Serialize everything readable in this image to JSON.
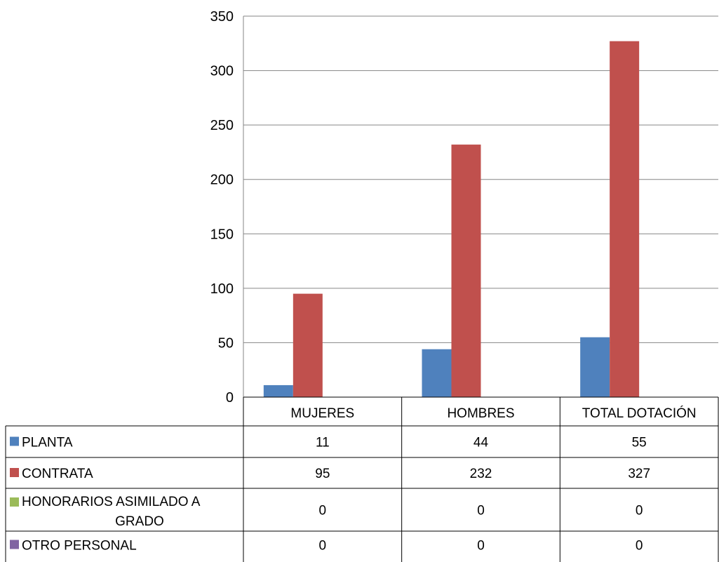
{
  "chart_data": {
    "type": "bar",
    "categories": [
      "MUJERES",
      "HOMBRES",
      "TOTAL DOTACIÓN"
    ],
    "series": [
      {
        "name": "PLANTA",
        "label_lines": [
          "PLANTA"
        ],
        "values": [
          11,
          44,
          55
        ],
        "color": "#4f81bd"
      },
      {
        "name": "CONTRATA",
        "label_lines": [
          "CONTRATA"
        ],
        "values": [
          95,
          232,
          327
        ],
        "color": "#c0504d"
      },
      {
        "name": "HONORARIOS ASIMILADO A GRADO",
        "label_lines": [
          "HONORARIOS ASIMILADO A",
          "GRADO"
        ],
        "values": [
          0,
          0,
          0
        ],
        "color": "#9bbb59"
      },
      {
        "name": "OTRO PERSONAL",
        "label_lines": [
          "OTRO PERSONAL"
        ],
        "values": [
          0,
          0,
          0
        ],
        "color": "#8064a2"
      }
    ],
    "ylim": [
      0,
      350
    ],
    "yticks": [
      0,
      50,
      100,
      150,
      200,
      250,
      300,
      350
    ],
    "grid": true,
    "legend": "data-table"
  }
}
